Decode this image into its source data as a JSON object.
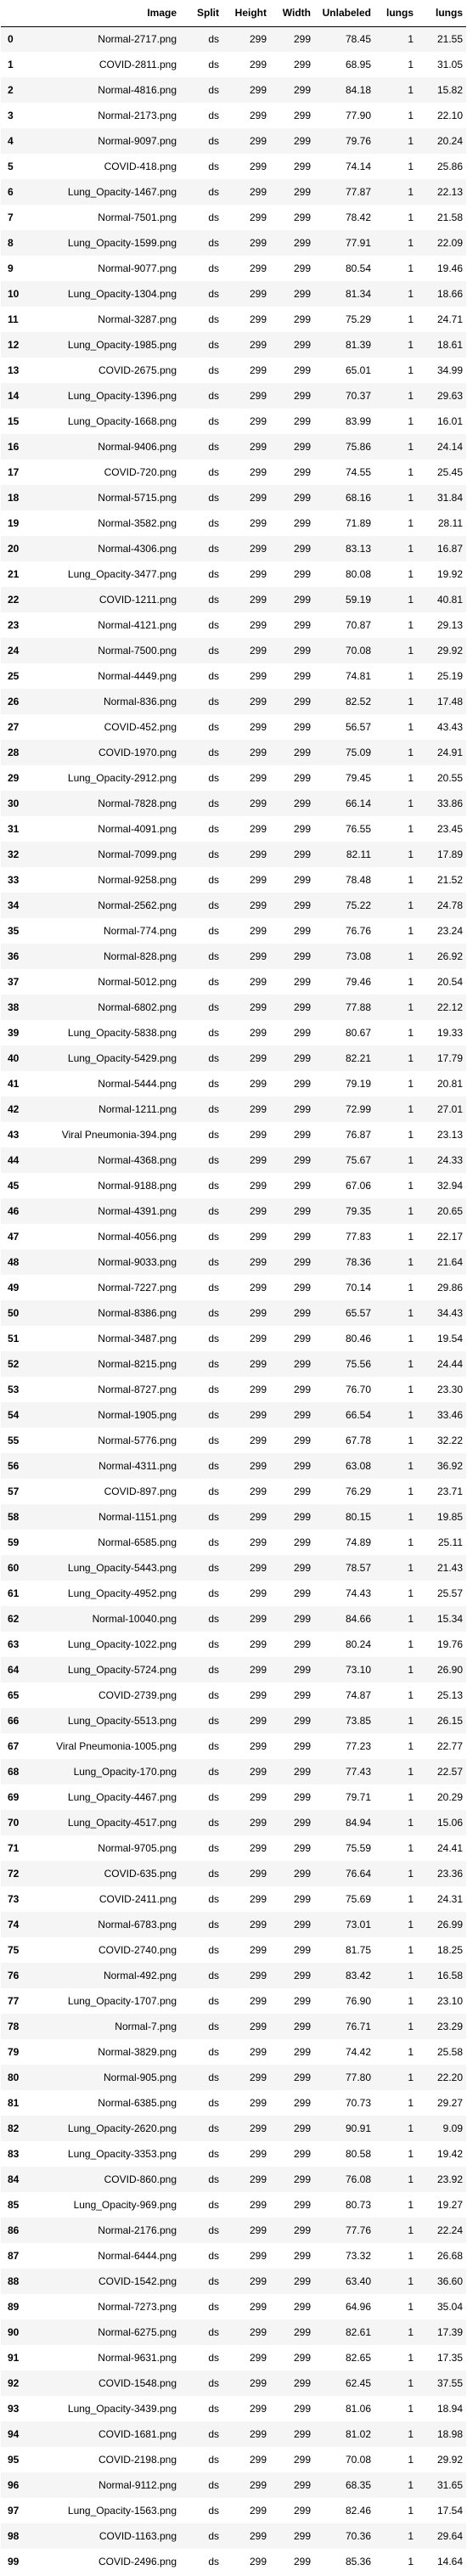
{
  "table": {
    "columns": [
      "",
      "Image",
      "Split",
      "Height",
      "Width",
      "Unlabeled",
      "lungs",
      "lungs"
    ],
    "rows": [
      [
        "0",
        "Normal-2717.png",
        "ds",
        "299",
        "299",
        "78.45",
        "1",
        "21.55"
      ],
      [
        "1",
        "COVID-2811.png",
        "ds",
        "299",
        "299",
        "68.95",
        "1",
        "31.05"
      ],
      [
        "2",
        "Normal-4816.png",
        "ds",
        "299",
        "299",
        "84.18",
        "1",
        "15.82"
      ],
      [
        "3",
        "Normal-2173.png",
        "ds",
        "299",
        "299",
        "77.90",
        "1",
        "22.10"
      ],
      [
        "4",
        "Normal-9097.png",
        "ds",
        "299",
        "299",
        "79.76",
        "1",
        "20.24"
      ],
      [
        "5",
        "COVID-418.png",
        "ds",
        "299",
        "299",
        "74.14",
        "1",
        "25.86"
      ],
      [
        "6",
        "Lung_Opacity-1467.png",
        "ds",
        "299",
        "299",
        "77.87",
        "1",
        "22.13"
      ],
      [
        "7",
        "Normal-7501.png",
        "ds",
        "299",
        "299",
        "78.42",
        "1",
        "21.58"
      ],
      [
        "8",
        "Lung_Opacity-1599.png",
        "ds",
        "299",
        "299",
        "77.91",
        "1",
        "22.09"
      ],
      [
        "9",
        "Normal-9077.png",
        "ds",
        "299",
        "299",
        "80.54",
        "1",
        "19.46"
      ],
      [
        "10",
        "Lung_Opacity-1304.png",
        "ds",
        "299",
        "299",
        "81.34",
        "1",
        "18.66"
      ],
      [
        "11",
        "Normal-3287.png",
        "ds",
        "299",
        "299",
        "75.29",
        "1",
        "24.71"
      ],
      [
        "12",
        "Lung_Opacity-1985.png",
        "ds",
        "299",
        "299",
        "81.39",
        "1",
        "18.61"
      ],
      [
        "13",
        "COVID-2675.png",
        "ds",
        "299",
        "299",
        "65.01",
        "1",
        "34.99"
      ],
      [
        "14",
        "Lung_Opacity-1396.png",
        "ds",
        "299",
        "299",
        "70.37",
        "1",
        "29.63"
      ],
      [
        "15",
        "Lung_Opacity-1668.png",
        "ds",
        "299",
        "299",
        "83.99",
        "1",
        "16.01"
      ],
      [
        "16",
        "Normal-9406.png",
        "ds",
        "299",
        "299",
        "75.86",
        "1",
        "24.14"
      ],
      [
        "17",
        "COVID-720.png",
        "ds",
        "299",
        "299",
        "74.55",
        "1",
        "25.45"
      ],
      [
        "18",
        "Normal-5715.png",
        "ds",
        "299",
        "299",
        "68.16",
        "1",
        "31.84"
      ],
      [
        "19",
        "Normal-3582.png",
        "ds",
        "299",
        "299",
        "71.89",
        "1",
        "28.11"
      ],
      [
        "20",
        "Normal-4306.png",
        "ds",
        "299",
        "299",
        "83.13",
        "1",
        "16.87"
      ],
      [
        "21",
        "Lung_Opacity-3477.png",
        "ds",
        "299",
        "299",
        "80.08",
        "1",
        "19.92"
      ],
      [
        "22",
        "COVID-1211.png",
        "ds",
        "299",
        "299",
        "59.19",
        "1",
        "40.81"
      ],
      [
        "23",
        "Normal-4121.png",
        "ds",
        "299",
        "299",
        "70.87",
        "1",
        "29.13"
      ],
      [
        "24",
        "Normal-7500.png",
        "ds",
        "299",
        "299",
        "70.08",
        "1",
        "29.92"
      ],
      [
        "25",
        "Normal-4449.png",
        "ds",
        "299",
        "299",
        "74.81",
        "1",
        "25.19"
      ],
      [
        "26",
        "Normal-836.png",
        "ds",
        "299",
        "299",
        "82.52",
        "1",
        "17.48"
      ],
      [
        "27",
        "COVID-452.png",
        "ds",
        "299",
        "299",
        "56.57",
        "1",
        "43.43"
      ],
      [
        "28",
        "COVID-1970.png",
        "ds",
        "299",
        "299",
        "75.09",
        "1",
        "24.91"
      ],
      [
        "29",
        "Lung_Opacity-2912.png",
        "ds",
        "299",
        "299",
        "79.45",
        "1",
        "20.55"
      ],
      [
        "30",
        "Normal-7828.png",
        "ds",
        "299",
        "299",
        "66.14",
        "1",
        "33.86"
      ],
      [
        "31",
        "Normal-4091.png",
        "ds",
        "299",
        "299",
        "76.55",
        "1",
        "23.45"
      ],
      [
        "32",
        "Normal-7099.png",
        "ds",
        "299",
        "299",
        "82.11",
        "1",
        "17.89"
      ],
      [
        "33",
        "Normal-9258.png",
        "ds",
        "299",
        "299",
        "78.48",
        "1",
        "21.52"
      ],
      [
        "34",
        "Normal-2562.png",
        "ds",
        "299",
        "299",
        "75.22",
        "1",
        "24.78"
      ],
      [
        "35",
        "Normal-774.png",
        "ds",
        "299",
        "299",
        "76.76",
        "1",
        "23.24"
      ],
      [
        "36",
        "Normal-828.png",
        "ds",
        "299",
        "299",
        "73.08",
        "1",
        "26.92"
      ],
      [
        "37",
        "Normal-5012.png",
        "ds",
        "299",
        "299",
        "79.46",
        "1",
        "20.54"
      ],
      [
        "38",
        "Normal-6802.png",
        "ds",
        "299",
        "299",
        "77.88",
        "1",
        "22.12"
      ],
      [
        "39",
        "Lung_Opacity-5838.png",
        "ds",
        "299",
        "299",
        "80.67",
        "1",
        "19.33"
      ],
      [
        "40",
        "Lung_Opacity-5429.png",
        "ds",
        "299",
        "299",
        "82.21",
        "1",
        "17.79"
      ],
      [
        "41",
        "Normal-5444.png",
        "ds",
        "299",
        "299",
        "79.19",
        "1",
        "20.81"
      ],
      [
        "42",
        "Normal-1211.png",
        "ds",
        "299",
        "299",
        "72.99",
        "1",
        "27.01"
      ],
      [
        "43",
        "Viral Pneumonia-394.png",
        "ds",
        "299",
        "299",
        "76.87",
        "1",
        "23.13"
      ],
      [
        "44",
        "Normal-4368.png",
        "ds",
        "299",
        "299",
        "75.67",
        "1",
        "24.33"
      ],
      [
        "45",
        "Normal-9188.png",
        "ds",
        "299",
        "299",
        "67.06",
        "1",
        "32.94"
      ],
      [
        "46",
        "Normal-4391.png",
        "ds",
        "299",
        "299",
        "79.35",
        "1",
        "20.65"
      ],
      [
        "47",
        "Normal-4056.png",
        "ds",
        "299",
        "299",
        "77.83",
        "1",
        "22.17"
      ],
      [
        "48",
        "Normal-9033.png",
        "ds",
        "299",
        "299",
        "78.36",
        "1",
        "21.64"
      ],
      [
        "49",
        "Normal-7227.png",
        "ds",
        "299",
        "299",
        "70.14",
        "1",
        "29.86"
      ],
      [
        "50",
        "Normal-8386.png",
        "ds",
        "299",
        "299",
        "65.57",
        "1",
        "34.43"
      ],
      [
        "51",
        "Normal-3487.png",
        "ds",
        "299",
        "299",
        "80.46",
        "1",
        "19.54"
      ],
      [
        "52",
        "Normal-8215.png",
        "ds",
        "299",
        "299",
        "75.56",
        "1",
        "24.44"
      ],
      [
        "53",
        "Normal-8727.png",
        "ds",
        "299",
        "299",
        "76.70",
        "1",
        "23.30"
      ],
      [
        "54",
        "Normal-1905.png",
        "ds",
        "299",
        "299",
        "66.54",
        "1",
        "33.46"
      ],
      [
        "55",
        "Normal-5776.png",
        "ds",
        "299",
        "299",
        "67.78",
        "1",
        "32.22"
      ],
      [
        "56",
        "Normal-4311.png",
        "ds",
        "299",
        "299",
        "63.08",
        "1",
        "36.92"
      ],
      [
        "57",
        "COVID-897.png",
        "ds",
        "299",
        "299",
        "76.29",
        "1",
        "23.71"
      ],
      [
        "58",
        "Normal-1151.png",
        "ds",
        "299",
        "299",
        "80.15",
        "1",
        "19.85"
      ],
      [
        "59",
        "Normal-6585.png",
        "ds",
        "299",
        "299",
        "74.89",
        "1",
        "25.11"
      ],
      [
        "60",
        "Lung_Opacity-5443.png",
        "ds",
        "299",
        "299",
        "78.57",
        "1",
        "21.43"
      ],
      [
        "61",
        "Lung_Opacity-4952.png",
        "ds",
        "299",
        "299",
        "74.43",
        "1",
        "25.57"
      ],
      [
        "62",
        "Normal-10040.png",
        "ds",
        "299",
        "299",
        "84.66",
        "1",
        "15.34"
      ],
      [
        "63",
        "Lung_Opacity-1022.png",
        "ds",
        "299",
        "299",
        "80.24",
        "1",
        "19.76"
      ],
      [
        "64",
        "Lung_Opacity-5724.png",
        "ds",
        "299",
        "299",
        "73.10",
        "1",
        "26.90"
      ],
      [
        "65",
        "COVID-2739.png",
        "ds",
        "299",
        "299",
        "74.87",
        "1",
        "25.13"
      ],
      [
        "66",
        "Lung_Opacity-5513.png",
        "ds",
        "299",
        "299",
        "73.85",
        "1",
        "26.15"
      ],
      [
        "67",
        "Viral Pneumonia-1005.png",
        "ds",
        "299",
        "299",
        "77.23",
        "1",
        "22.77"
      ],
      [
        "68",
        "Lung_Opacity-170.png",
        "ds",
        "299",
        "299",
        "77.43",
        "1",
        "22.57"
      ],
      [
        "69",
        "Lung_Opacity-4467.png",
        "ds",
        "299",
        "299",
        "79.71",
        "1",
        "20.29"
      ],
      [
        "70",
        "Lung_Opacity-4517.png",
        "ds",
        "299",
        "299",
        "84.94",
        "1",
        "15.06"
      ],
      [
        "71",
        "Normal-9705.png",
        "ds",
        "299",
        "299",
        "75.59",
        "1",
        "24.41"
      ],
      [
        "72",
        "COVID-635.png",
        "ds",
        "299",
        "299",
        "76.64",
        "1",
        "23.36"
      ],
      [
        "73",
        "COVID-2411.png",
        "ds",
        "299",
        "299",
        "75.69",
        "1",
        "24.31"
      ],
      [
        "74",
        "Normal-6783.png",
        "ds",
        "299",
        "299",
        "73.01",
        "1",
        "26.99"
      ],
      [
        "75",
        "COVID-2740.png",
        "ds",
        "299",
        "299",
        "81.75",
        "1",
        "18.25"
      ],
      [
        "76",
        "Normal-492.png",
        "ds",
        "299",
        "299",
        "83.42",
        "1",
        "16.58"
      ],
      [
        "77",
        "Lung_Opacity-1707.png",
        "ds",
        "299",
        "299",
        "76.90",
        "1",
        "23.10"
      ],
      [
        "78",
        "Normal-7.png",
        "ds",
        "299",
        "299",
        "76.71",
        "1",
        "23.29"
      ],
      [
        "79",
        "Normal-3829.png",
        "ds",
        "299",
        "299",
        "74.42",
        "1",
        "25.58"
      ],
      [
        "80",
        "Normal-905.png",
        "ds",
        "299",
        "299",
        "77.80",
        "1",
        "22.20"
      ],
      [
        "81",
        "Normal-6385.png",
        "ds",
        "299",
        "299",
        "70.73",
        "1",
        "29.27"
      ],
      [
        "82",
        "Lung_Opacity-2620.png",
        "ds",
        "299",
        "299",
        "90.91",
        "1",
        "9.09"
      ],
      [
        "83",
        "Lung_Opacity-3353.png",
        "ds",
        "299",
        "299",
        "80.58",
        "1",
        "19.42"
      ],
      [
        "84",
        "COVID-860.png",
        "ds",
        "299",
        "299",
        "76.08",
        "1",
        "23.92"
      ],
      [
        "85",
        "Lung_Opacity-969.png",
        "ds",
        "299",
        "299",
        "80.73",
        "1",
        "19.27"
      ],
      [
        "86",
        "Normal-2176.png",
        "ds",
        "299",
        "299",
        "77.76",
        "1",
        "22.24"
      ],
      [
        "87",
        "Normal-6444.png",
        "ds",
        "299",
        "299",
        "73.32",
        "1",
        "26.68"
      ],
      [
        "88",
        "COVID-1542.png",
        "ds",
        "299",
        "299",
        "63.40",
        "1",
        "36.60"
      ],
      [
        "89",
        "Normal-7273.png",
        "ds",
        "299",
        "299",
        "64.96",
        "1",
        "35.04"
      ],
      [
        "90",
        "Normal-6275.png",
        "ds",
        "299",
        "299",
        "82.61",
        "1",
        "17.39"
      ],
      [
        "91",
        "Normal-9631.png",
        "ds",
        "299",
        "299",
        "82.65",
        "1",
        "17.35"
      ],
      [
        "92",
        "COVID-1548.png",
        "ds",
        "299",
        "299",
        "62.45",
        "1",
        "37.55"
      ],
      [
        "93",
        "Lung_Opacity-3439.png",
        "ds",
        "299",
        "299",
        "81.06",
        "1",
        "18.94"
      ],
      [
        "94",
        "COVID-1681.png",
        "ds",
        "299",
        "299",
        "81.02",
        "1",
        "18.98"
      ],
      [
        "95",
        "COVID-2198.png",
        "ds",
        "299",
        "299",
        "70.08",
        "1",
        "29.92"
      ],
      [
        "96",
        "Normal-9112.png",
        "ds",
        "299",
        "299",
        "68.35",
        "1",
        "31.65"
      ],
      [
        "97",
        "Lung_Opacity-1563.png",
        "ds",
        "299",
        "299",
        "82.46",
        "1",
        "17.54"
      ],
      [
        "98",
        "COVID-1163.png",
        "ds",
        "299",
        "299",
        "70.36",
        "1",
        "29.64"
      ],
      [
        "99",
        "COVID-2496.png",
        "ds",
        "299",
        "299",
        "85.36",
        "1",
        "14.64"
      ]
    ]
  }
}
